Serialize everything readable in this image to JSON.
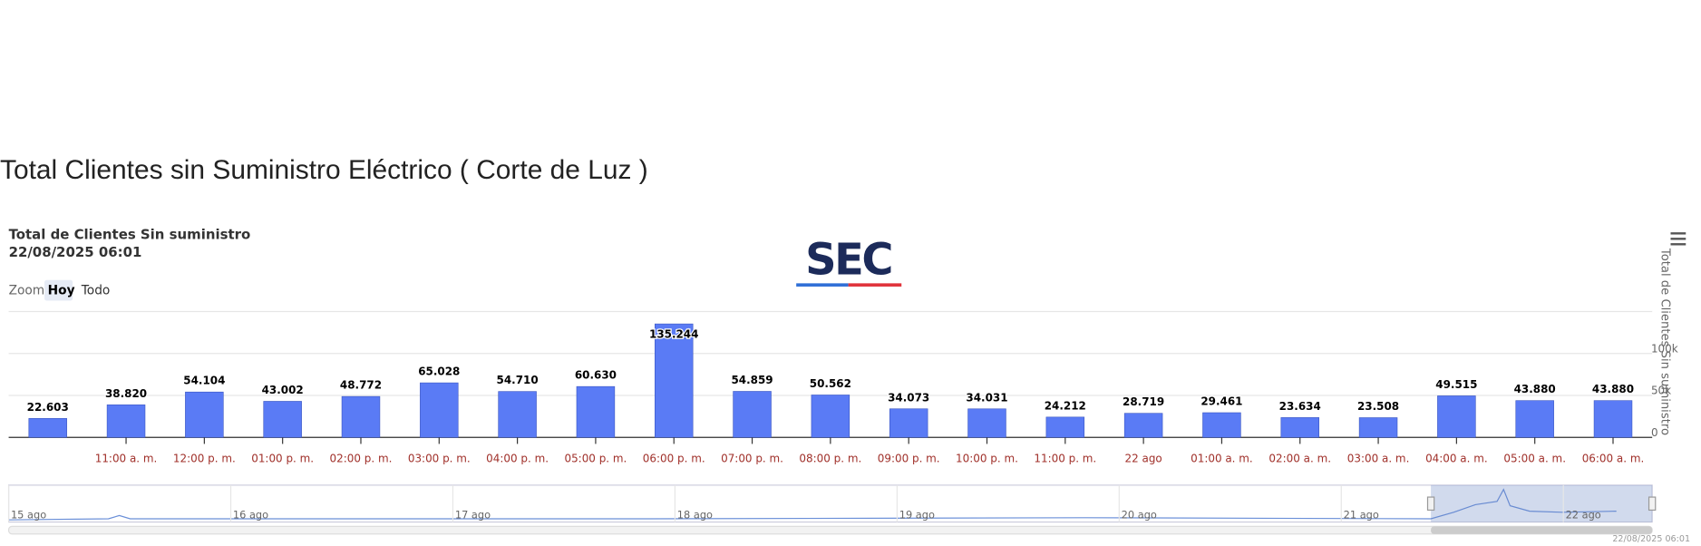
{
  "page_title": "Total Clientes sin Suministro Eléctrico ( Corte de Luz )",
  "logo": "SEC",
  "zoom": {
    "label": "Zoom",
    "buttons": [
      "Hoy",
      "Todo"
    ],
    "selected": 0
  },
  "navigator": {
    "labels": [
      "15 ago",
      "16 ago",
      "17 ago",
      "18 ago",
      "19 ago",
      "20 ago",
      "21 ago",
      "22 ago"
    ]
  },
  "credits": "22/08/2025 06:01",
  "chart_data": {
    "type": "bar",
    "title": "Total de Clientes Sin suministro",
    "subtitle": "22/08/2025 06:01",
    "y_axis_title": "Total de Clientes Sin suministro",
    "categories": [
      null,
      "11:00 a. m.",
      "12:00 p. m.",
      "01:00 p. m.",
      "02:00 p. m.",
      "03:00 p. m.",
      "04:00 p. m.",
      "05:00 p. m.",
      "06:00 p. m.",
      "07:00 p. m.",
      "08:00 p. m.",
      "09:00 p. m.",
      "10:00 p. m.",
      "11:00 p. m.",
      "22 ago",
      "01:00 a. m.",
      "02:00 a. m.",
      "03:00 a. m.",
      "04:00 a. m.",
      "05:00 a. m.",
      "06:00 a. m."
    ],
    "values": [
      22603,
      38820,
      54104,
      43002,
      48772,
      65028,
      54710,
      60630,
      135244,
      54859,
      50562,
      34073,
      34031,
      24212,
      28719,
      29461,
      23634,
      23508,
      49515,
      43880,
      43880
    ],
    "value_labels": [
      "22.603",
      "38.820",
      "54.104",
      "43.002",
      "48.772",
      "65.028",
      "54.710",
      "60.630",
      "135.244",
      "54.859",
      "50.562",
      "34.073",
      "34.031",
      "24.212",
      "28.719",
      "29.461",
      "23.634",
      "23.508",
      "49.515",
      "43.880",
      "43.880"
    ],
    "color": "#5a7bf5",
    "category_color": "#a0302a",
    "ylim": [
      0,
      150000
    ],
    "yticks": [
      0,
      {
        "value": 50000,
        "label": "50k"
      },
      {
        "value": 100000,
        "label": "100k"
      }
    ],
    "grid": true
  }
}
